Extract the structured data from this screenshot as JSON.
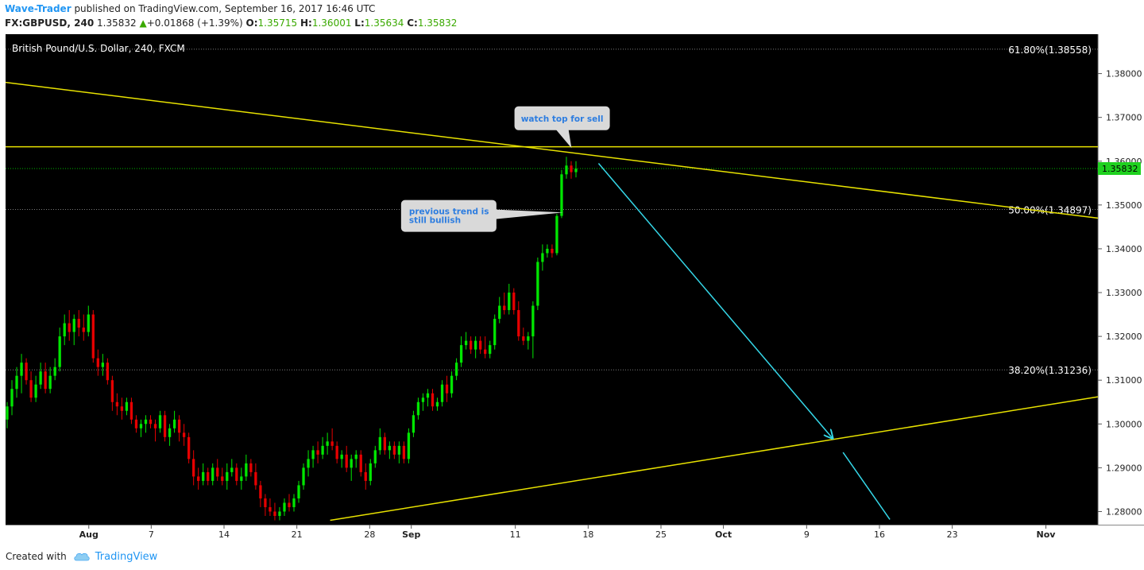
{
  "header": {
    "author": "Wave-Trader",
    "published": " published on TradingView.com, September 16, 2017 16:46 UTC",
    "symbol": "FX:GBPUSD, 240",
    "price": "1.35832",
    "change": "+0.01868 (+1.39%)",
    "o_label": "O:",
    "o_value": "1.35715",
    "h_label": "H:",
    "h_value": "1.36001",
    "l_label": "L:",
    "l_value": "1.35634",
    "c_label": "C:",
    "c_value": "1.35832"
  },
  "footer": {
    "created_with": "Created with",
    "brand": "TradingView",
    "brand_icon": "tradingview-cloud-icon"
  },
  "colors": {
    "background": "#000000",
    "bull": "#00e600",
    "bear": "#e60000",
    "trendline": "#e8e200",
    "arrow": "#35d7e8",
    "price_tag": "#1fd11f",
    "callout": "#d9d9d9",
    "callout_text": "#2d7de0"
  },
  "chart_data": {
    "type": "candlestick",
    "title": "British Pound/U.S. Dollar, 240, FXCM",
    "x_ticks": [
      "Aug",
      "7",
      "14",
      "21",
      "28",
      "Sep",
      "11",
      "18",
      "25",
      "Oct",
      "9",
      "16",
      "23",
      "Nov"
    ],
    "x_tick_days": [
      0,
      6,
      13,
      20,
      27,
      31,
      41,
      48,
      55,
      61,
      69,
      76,
      83,
      92
    ],
    "x_range_days": [
      -8,
      97
    ],
    "y_ticks": [
      "1.38000",
      "1.37000",
      "1.36000",
      "1.35000",
      "1.34000",
      "1.33000",
      "1.32000",
      "1.31000",
      "1.30000",
      "1.29000",
      "1.28000"
    ],
    "y_range": [
      1.277,
      1.389
    ],
    "current_price": {
      "value": 1.35832,
      "label": "1.35832"
    },
    "fib_levels": [
      {
        "value": 1.38558,
        "label": "61.80%(1.38558)"
      },
      {
        "value": 1.34897,
        "label": "50.00%(1.34897)"
      },
      {
        "value": 1.31236,
        "label": "38.20%(1.31236)"
      }
    ],
    "horizontal_line": {
      "value": 1.3633
    },
    "trendlines": [
      {
        "from": [
          -8,
          1.378
        ],
        "to": [
          97,
          1.347
        ]
      },
      {
        "from": [
          23.2,
          1.278
        ],
        "to": [
          97,
          1.3062
        ]
      }
    ],
    "arrows": [
      {
        "from": [
          49.0,
          1.3595
        ],
        "to": [
          71.5,
          1.2967
        ]
      },
      {
        "from": [
          72.5,
          1.2935
        ],
        "to": [
          77.0,
          1.2782
        ]
      }
    ],
    "callouts": [
      {
        "text": "watch top for sell",
        "at": [
          45.5,
          1.3698
        ],
        "tip": [
          46.4,
          1.363
        ]
      },
      {
        "text": "previous trend is still bullish",
        "at": [
          34.6,
          1.3475
        ],
        "tip": [
          45.6,
          1.3483
        ]
      }
    ],
    "candles": [
      {
        "o": 1.301,
        "h": 1.305,
        "l": 1.299,
        "c": 1.304
      },
      {
        "o": 1.304,
        "h": 1.31,
        "l": 1.302,
        "c": 1.308
      },
      {
        "o": 1.308,
        "h": 1.313,
        "l": 1.306,
        "c": 1.311
      },
      {
        "o": 1.311,
        "h": 1.316,
        "l": 1.307,
        "c": 1.314
      },
      {
        "o": 1.314,
        "h": 1.315,
        "l": 1.309,
        "c": 1.31
      },
      {
        "o": 1.31,
        "h": 1.312,
        "l": 1.305,
        "c": 1.306
      },
      {
        "o": 1.306,
        "h": 1.311,
        "l": 1.305,
        "c": 1.309
      },
      {
        "o": 1.309,
        "h": 1.314,
        "l": 1.308,
        "c": 1.312
      },
      {
        "o": 1.312,
        "h": 1.314,
        "l": 1.307,
        "c": 1.308
      },
      {
        "o": 1.308,
        "h": 1.313,
        "l": 1.307,
        "c": 1.311
      },
      {
        "o": 1.311,
        "h": 1.315,
        "l": 1.31,
        "c": 1.313
      },
      {
        "o": 1.313,
        "h": 1.322,
        "l": 1.312,
        "c": 1.32
      },
      {
        "o": 1.32,
        "h": 1.325,
        "l": 1.318,
        "c": 1.323
      },
      {
        "o": 1.323,
        "h": 1.326,
        "l": 1.319,
        "c": 1.321
      },
      {
        "o": 1.321,
        "h": 1.325,
        "l": 1.318,
        "c": 1.324
      },
      {
        "o": 1.324,
        "h": 1.326,
        "l": 1.32,
        "c": 1.322
      },
      {
        "o": 1.322,
        "h": 1.325,
        "l": 1.319,
        "c": 1.321
      },
      {
        "o": 1.321,
        "h": 1.327,
        "l": 1.32,
        "c": 1.325
      },
      {
        "o": 1.325,
        "h": 1.326,
        "l": 1.314,
        "c": 1.315
      },
      {
        "o": 1.315,
        "h": 1.317,
        "l": 1.311,
        "c": 1.313
      },
      {
        "o": 1.313,
        "h": 1.316,
        "l": 1.311,
        "c": 1.314
      },
      {
        "o": 1.314,
        "h": 1.315,
        "l": 1.309,
        "c": 1.31
      },
      {
        "o": 1.31,
        "h": 1.311,
        "l": 1.303,
        "c": 1.305
      },
      {
        "o": 1.305,
        "h": 1.307,
        "l": 1.302,
        "c": 1.304
      },
      {
        "o": 1.304,
        "h": 1.306,
        "l": 1.301,
        "c": 1.303
      },
      {
        "o": 1.303,
        "h": 1.306,
        "l": 1.302,
        "c": 1.305
      },
      {
        "o": 1.305,
        "h": 1.306,
        "l": 1.3,
        "c": 1.301
      },
      {
        "o": 1.301,
        "h": 1.302,
        "l": 1.298,
        "c": 1.299
      },
      {
        "o": 1.299,
        "h": 1.301,
        "l": 1.297,
        "c": 1.3
      },
      {
        "o": 1.3,
        "h": 1.302,
        "l": 1.298,
        "c": 1.301
      },
      {
        "o": 1.301,
        "h": 1.302,
        "l": 1.299,
        "c": 1.3
      },
      {
        "o": 1.3,
        "h": 1.301,
        "l": 1.296,
        "c": 1.299
      },
      {
        "o": 1.299,
        "h": 1.303,
        "l": 1.298,
        "c": 1.302
      },
      {
        "o": 1.302,
        "h": 1.303,
        "l": 1.296,
        "c": 1.297
      },
      {
        "o": 1.297,
        "h": 1.3,
        "l": 1.295,
        "c": 1.299
      },
      {
        "o": 1.299,
        "h": 1.303,
        "l": 1.298,
        "c": 1.301
      },
      {
        "o": 1.301,
        "h": 1.302,
        "l": 1.296,
        "c": 1.298
      },
      {
        "o": 1.298,
        "h": 1.3,
        "l": 1.295,
        "c": 1.297
      },
      {
        "o": 1.297,
        "h": 1.298,
        "l": 1.291,
        "c": 1.292
      },
      {
        "o": 1.292,
        "h": 1.294,
        "l": 1.286,
        "c": 1.288
      },
      {
        "o": 1.288,
        "h": 1.29,
        "l": 1.285,
        "c": 1.287
      },
      {
        "o": 1.287,
        "h": 1.291,
        "l": 1.286,
        "c": 1.289
      },
      {
        "o": 1.289,
        "h": 1.29,
        "l": 1.286,
        "c": 1.287
      },
      {
        "o": 1.287,
        "h": 1.291,
        "l": 1.286,
        "c": 1.29
      },
      {
        "o": 1.29,
        "h": 1.292,
        "l": 1.287,
        "c": 1.288
      },
      {
        "o": 1.288,
        "h": 1.29,
        "l": 1.286,
        "c": 1.287
      },
      {
        "o": 1.287,
        "h": 1.291,
        "l": 1.285,
        "c": 1.289
      },
      {
        "o": 1.289,
        "h": 1.292,
        "l": 1.288,
        "c": 1.29
      },
      {
        "o": 1.29,
        "h": 1.291,
        "l": 1.286,
        "c": 1.287
      },
      {
        "o": 1.287,
        "h": 1.29,
        "l": 1.285,
        "c": 1.288
      },
      {
        "o": 1.288,
        "h": 1.293,
        "l": 1.287,
        "c": 1.291
      },
      {
        "o": 1.291,
        "h": 1.292,
        "l": 1.288,
        "c": 1.289
      },
      {
        "o": 1.289,
        "h": 1.291,
        "l": 1.285,
        "c": 1.286
      },
      {
        "o": 1.286,
        "h": 1.287,
        "l": 1.281,
        "c": 1.283
      },
      {
        "o": 1.283,
        "h": 1.284,
        "l": 1.279,
        "c": 1.281
      },
      {
        "o": 1.281,
        "h": 1.283,
        "l": 1.279,
        "c": 1.28
      },
      {
        "o": 1.28,
        "h": 1.282,
        "l": 1.278,
        "c": 1.279
      },
      {
        "o": 1.279,
        "h": 1.281,
        "l": 1.278,
        "c": 1.28
      },
      {
        "o": 1.28,
        "h": 1.283,
        "l": 1.279,
        "c": 1.282
      },
      {
        "o": 1.282,
        "h": 1.284,
        "l": 1.28,
        "c": 1.281
      },
      {
        "o": 1.281,
        "h": 1.284,
        "l": 1.28,
        "c": 1.283
      },
      {
        "o": 1.283,
        "h": 1.287,
        "l": 1.282,
        "c": 1.286
      },
      {
        "o": 1.286,
        "h": 1.291,
        "l": 1.285,
        "c": 1.29
      },
      {
        "o": 1.29,
        "h": 1.294,
        "l": 1.288,
        "c": 1.292
      },
      {
        "o": 1.292,
        "h": 1.295,
        "l": 1.29,
        "c": 1.294
      },
      {
        "o": 1.294,
        "h": 1.296,
        "l": 1.291,
        "c": 1.293
      },
      {
        "o": 1.293,
        "h": 1.297,
        "l": 1.292,
        "c": 1.295
      },
      {
        "o": 1.295,
        "h": 1.298,
        "l": 1.293,
        "c": 1.296
      },
      {
        "o": 1.296,
        "h": 1.299,
        "l": 1.294,
        "c": 1.295
      },
      {
        "o": 1.295,
        "h": 1.296,
        "l": 1.291,
        "c": 1.292
      },
      {
        "o": 1.292,
        "h": 1.294,
        "l": 1.29,
        "c": 1.293
      },
      {
        "o": 1.293,
        "h": 1.295,
        "l": 1.289,
        "c": 1.29
      },
      {
        "o": 1.29,
        "h": 1.293,
        "l": 1.287,
        "c": 1.292
      },
      {
        "o": 1.292,
        "h": 1.294,
        "l": 1.29,
        "c": 1.293
      },
      {
        "o": 1.293,
        "h": 1.294,
        "l": 1.288,
        "c": 1.289
      },
      {
        "o": 1.289,
        "h": 1.291,
        "l": 1.285,
        "c": 1.287
      },
      {
        "o": 1.287,
        "h": 1.292,
        "l": 1.286,
        "c": 1.291
      },
      {
        "o": 1.291,
        "h": 1.295,
        "l": 1.29,
        "c": 1.294
      },
      {
        "o": 1.294,
        "h": 1.299,
        "l": 1.293,
        "c": 1.297
      },
      {
        "o": 1.297,
        "h": 1.298,
        "l": 1.293,
        "c": 1.294
      },
      {
        "o": 1.294,
        "h": 1.296,
        "l": 1.292,
        "c": 1.295
      },
      {
        "o": 1.295,
        "h": 1.296,
        "l": 1.292,
        "c": 1.293
      },
      {
        "o": 1.293,
        "h": 1.296,
        "l": 1.291,
        "c": 1.295
      },
      {
        "o": 1.295,
        "h": 1.296,
        "l": 1.291,
        "c": 1.292
      },
      {
        "o": 1.292,
        "h": 1.299,
        "l": 1.291,
        "c": 1.298
      },
      {
        "o": 1.298,
        "h": 1.303,
        "l": 1.297,
        "c": 1.302
      },
      {
        "o": 1.302,
        "h": 1.306,
        "l": 1.301,
        "c": 1.305
      },
      {
        "o": 1.305,
        "h": 1.307,
        "l": 1.303,
        "c": 1.306
      },
      {
        "o": 1.306,
        "h": 1.308,
        "l": 1.304,
        "c": 1.307
      },
      {
        "o": 1.307,
        "h": 1.308,
        "l": 1.303,
        "c": 1.304
      },
      {
        "o": 1.304,
        "h": 1.306,
        "l": 1.303,
        "c": 1.305
      },
      {
        "o": 1.305,
        "h": 1.31,
        "l": 1.304,
        "c": 1.309
      },
      {
        "o": 1.309,
        "h": 1.311,
        "l": 1.305,
        "c": 1.307
      },
      {
        "o": 1.307,
        "h": 1.312,
        "l": 1.306,
        "c": 1.311
      },
      {
        "o": 1.311,
        "h": 1.315,
        "l": 1.31,
        "c": 1.314
      },
      {
        "o": 1.314,
        "h": 1.32,
        "l": 1.313,
        "c": 1.318
      },
      {
        "o": 1.318,
        "h": 1.321,
        "l": 1.317,
        "c": 1.319
      },
      {
        "o": 1.319,
        "h": 1.32,
        "l": 1.316,
        "c": 1.317
      },
      {
        "o": 1.317,
        "h": 1.32,
        "l": 1.315,
        "c": 1.319
      },
      {
        "o": 1.319,
        "h": 1.32,
        "l": 1.316,
        "c": 1.317
      },
      {
        "o": 1.317,
        "h": 1.32,
        "l": 1.315,
        "c": 1.316
      },
      {
        "o": 1.316,
        "h": 1.319,
        "l": 1.315,
        "c": 1.318
      },
      {
        "o": 1.318,
        "h": 1.325,
        "l": 1.317,
        "c": 1.324
      },
      {
        "o": 1.324,
        "h": 1.329,
        "l": 1.323,
        "c": 1.327
      },
      {
        "o": 1.327,
        "h": 1.33,
        "l": 1.325,
        "c": 1.326
      },
      {
        "o": 1.326,
        "h": 1.332,
        "l": 1.325,
        "c": 1.33
      },
      {
        "o": 1.33,
        "h": 1.331,
        "l": 1.325,
        "c": 1.326
      },
      {
        "o": 1.326,
        "h": 1.328,
        "l": 1.319,
        "c": 1.32
      },
      {
        "o": 1.32,
        "h": 1.322,
        "l": 1.318,
        "c": 1.319
      },
      {
        "o": 1.319,
        "h": 1.321,
        "l": 1.317,
        "c": 1.32
      },
      {
        "o": 1.32,
        "h": 1.328,
        "l": 1.315,
        "c": 1.327
      },
      {
        "o": 1.327,
        "h": 1.338,
        "l": 1.326,
        "c": 1.337
      },
      {
        "o": 1.337,
        "h": 1.341,
        "l": 1.335,
        "c": 1.339
      },
      {
        "o": 1.339,
        "h": 1.341,
        "l": 1.338,
        "c": 1.34
      },
      {
        "o": 1.34,
        "h": 1.341,
        "l": 1.338,
        "c": 1.339
      },
      {
        "o": 1.339,
        "h": 1.348,
        "l": 1.3385,
        "c": 1.3475
      },
      {
        "o": 1.3475,
        "h": 1.358,
        "l": 1.347,
        "c": 1.357
      },
      {
        "o": 1.357,
        "h": 1.361,
        "l": 1.356,
        "c": 1.359
      },
      {
        "o": 1.359,
        "h": 1.36,
        "l": 1.356,
        "c": 1.3575
      },
      {
        "o": 1.3575,
        "h": 1.36,
        "l": 1.3563,
        "c": 1.3583
      }
    ]
  }
}
